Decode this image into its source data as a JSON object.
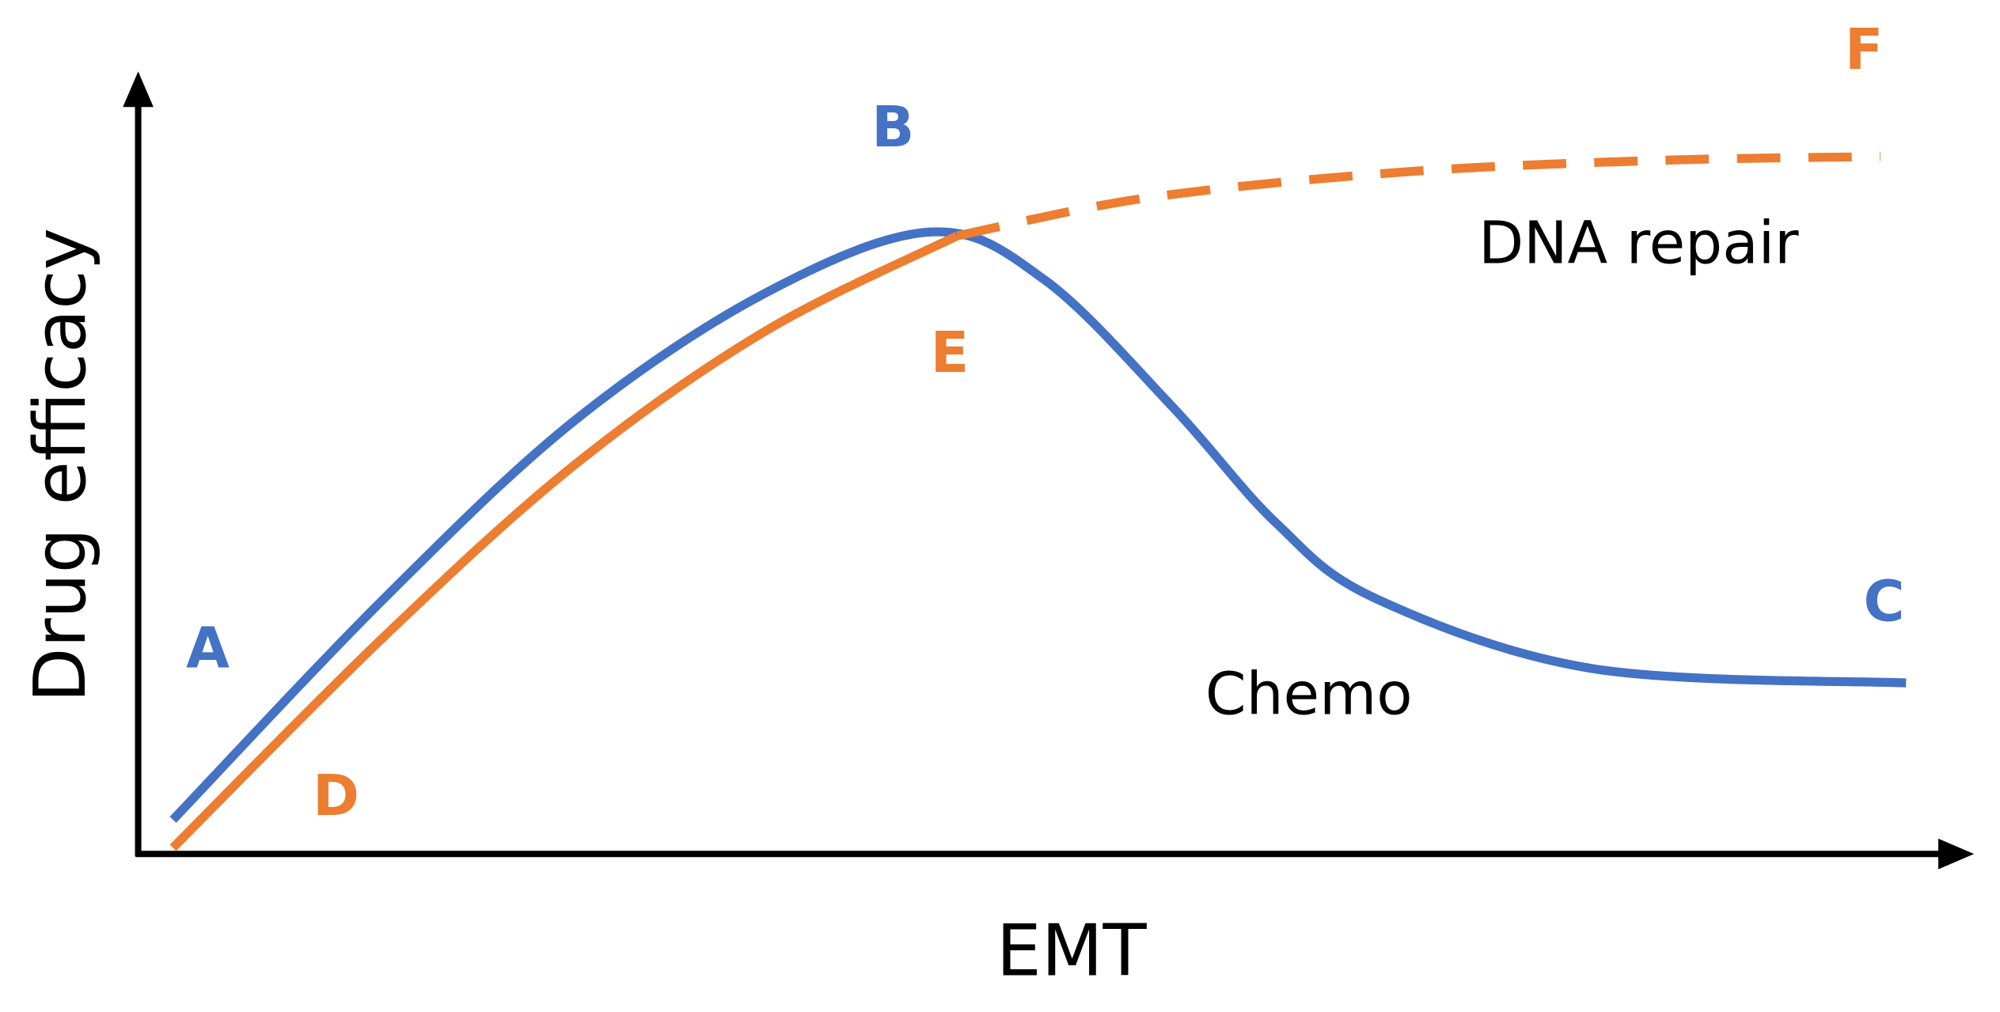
{
  "chart_data": {
    "type": "line",
    "title": "",
    "xlabel": "EMT",
    "ylabel": "Drug efficacy",
    "xlim": [
      0,
      100
    ],
    "ylim": [
      0,
      100
    ],
    "grid": false,
    "colors": {
      "chemo": "#4472C4",
      "dna_repair": "#ED7D31",
      "axis": "#000000"
    },
    "series": [
      {
        "name": "Chemo",
        "style": "solid",
        "color": "#4472C4",
        "points": [
          [
            1.9,
            4.4
          ],
          [
            13.4,
            32.8
          ],
          [
            23.8,
            55.7
          ],
          [
            34.2,
            72.1
          ],
          [
            43.3,
            80.0
          ],
          [
            49.5,
            73.8
          ],
          [
            56.5,
            57.4
          ],
          [
            62.1,
            42.6
          ],
          [
            67.6,
            32.8
          ],
          [
            79.5,
            23.8
          ],
          [
            96.5,
            22.0
          ]
        ]
      },
      {
        "name": "DNA repair",
        "style": "solid",
        "color": "#ED7D31",
        "points": [
          [
            1.9,
            0.8
          ],
          [
            13.4,
            27.9
          ],
          [
            23.8,
            50.0
          ],
          [
            34.2,
            67.2
          ],
          [
            44.7,
            79.5
          ]
        ]
      },
      {
        "name": "DNA repair (extrapolated)",
        "style": "dashed",
        "color": "#ED7D31",
        "points": [
          [
            44.7,
            79.5
          ],
          [
            55.1,
            84.4
          ],
          [
            69.0,
            87.7
          ],
          [
            82.9,
            89.2
          ],
          [
            95.1,
            89.7
          ]
        ]
      }
    ],
    "annotations": [
      {
        "text": "A",
        "color": "#4472C4",
        "at": [
          3.8,
          24
        ]
      },
      {
        "text": "B",
        "color": "#4472C4",
        "at": [
          41.2,
          91
        ]
      },
      {
        "text": "C",
        "color": "#4472C4",
        "at": [
          95.3,
          30
        ]
      },
      {
        "text": "D",
        "color": "#ED7D31",
        "at": [
          10.8,
          5
        ]
      },
      {
        "text": "E",
        "color": "#ED7D31",
        "at": [
          44.3,
          62
        ]
      },
      {
        "text": "F",
        "color": "#ED7D31",
        "at": [
          94.2,
          101
        ]
      },
      {
        "text": "DNA repair",
        "color": "#000000",
        "at": [
          81.9,
          76
        ]
      },
      {
        "text": "Chemo",
        "color": "#000000",
        "at": [
          63.9,
          18
        ]
      }
    ]
  }
}
